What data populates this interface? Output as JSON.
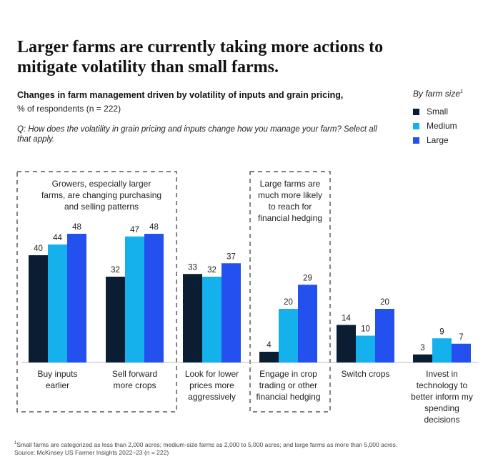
{
  "title": "Larger farms are currently taking more actions to mitigate volatility than small farms.",
  "subtitle": "Changes in farm management driven by volatility of inputs and grain pricing,",
  "unit": "% of respondents (n = 222)",
  "question": "Q: How does the volatility in grain pricing and inputs change how you manage your farm? Select all that apply.",
  "legend": {
    "title": "By farm size",
    "title_sup": "1",
    "items": [
      {
        "label": "Small",
        "color": "#0b1d33"
      },
      {
        "label": "Medium",
        "color": "#14b1ec"
      },
      {
        "label": "Large",
        "color": "#2450f0"
      }
    ]
  },
  "annotations": [
    {
      "lines": [
        "Growers, especially larger",
        "farms, are changing purchasing",
        "and selling patterns"
      ]
    },
    {
      "lines": [
        "Large farms are",
        "much more likely",
        "to reach for",
        "financial hedging"
      ]
    }
  ],
  "chart_data": {
    "type": "bar",
    "categories": [
      [
        "Buy inputs",
        "earlier"
      ],
      [
        "Sell forward",
        "more crops"
      ],
      [
        "Look for lower",
        "prices more",
        "aggressively"
      ],
      [
        "Engage in crop",
        "trading or other",
        "financial hedging"
      ],
      [
        "Switch crops"
      ],
      [
        "Invest in",
        "technology to",
        "better inform my",
        "spending",
        "decisions"
      ]
    ],
    "series": [
      {
        "name": "Small",
        "color": "#0b1d33",
        "values": [
          40,
          32,
          33,
          4,
          14,
          3
        ]
      },
      {
        "name": "Medium",
        "color": "#14b1ec",
        "values": [
          44,
          47,
          32,
          20,
          10,
          9
        ]
      },
      {
        "name": "Large",
        "color": "#2450f0",
        "values": [
          48,
          48,
          37,
          29,
          20,
          7
        ]
      }
    ],
    "ylim": [
      0,
      48
    ]
  },
  "footnote": {
    "sup": "1",
    "line1": "Small farms are categorized as less than 2,000 acres; medium-size farms as 2,000 to 5,000 acres; and large farms as more than 5,000 acres.",
    "line2": "Source: McKinsey US Farmer Insights 2022–23 (n = 222)"
  }
}
